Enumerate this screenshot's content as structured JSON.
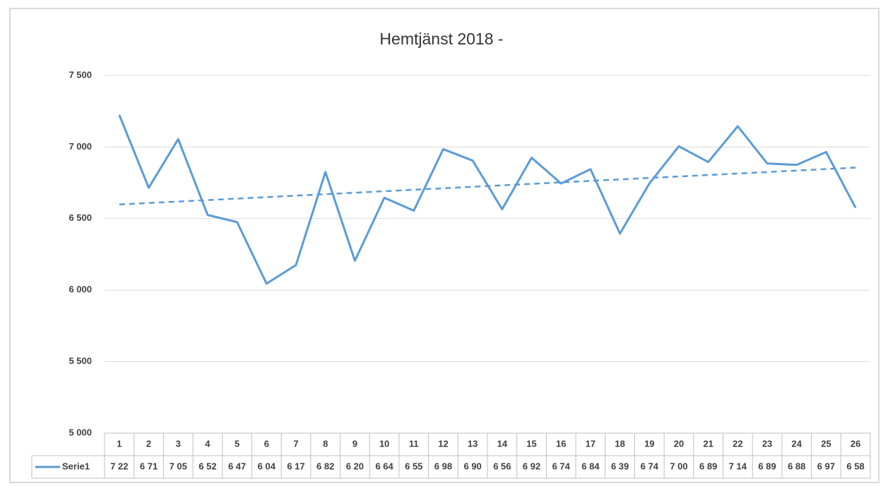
{
  "chart_data": {
    "type": "line",
    "title": "Hemtjänst 2018 -",
    "categories": [
      "1",
      "2",
      "3",
      "4",
      "5",
      "6",
      "7",
      "8",
      "9",
      "10",
      "11",
      "12",
      "13",
      "14",
      "15",
      "16",
      "17",
      "18",
      "19",
      "20",
      "21",
      "22",
      "23",
      "24",
      "25",
      "26"
    ],
    "series": [
      {
        "name": "Serie1",
        "color": "#5b9bd5",
        "values": [
          7225,
          6715,
          7055,
          6525,
          6475,
          6045,
          6175,
          6825,
          6205,
          6645,
          6555,
          6985,
          6905,
          6565,
          6925,
          6745,
          6845,
          6395,
          6745,
          7005,
          6895,
          7145,
          6885,
          6875,
          6965,
          6575
        ],
        "value_labels": [
          "7 22",
          "6 71",
          "7 05",
          "6 52",
          "6 47",
          "6 04",
          "6 17",
          "6 82",
          "6 20",
          "6 64",
          "6 55",
          "6 98",
          "6 90",
          "6 56",
          "6 92",
          "6 74",
          "6 84",
          "6 39",
          "6 74",
          "7 00",
          "6 89",
          "7 14",
          "6 89",
          "6 88",
          "6 97",
          "6 58"
        ]
      }
    ],
    "ylim": [
      5000,
      7500
    ],
    "yticks": [
      {
        "value": 5000,
        "label": "5 000"
      },
      {
        "value": 5500,
        "label": "5 500"
      },
      {
        "value": 6000,
        "label": "6 000"
      },
      {
        "value": 6500,
        "label": "6 500"
      },
      {
        "value": 7000,
        "label": "7 000"
      },
      {
        "value": 7500,
        "label": "7 500"
      }
    ],
    "grid": true,
    "trendline": "linear"
  }
}
